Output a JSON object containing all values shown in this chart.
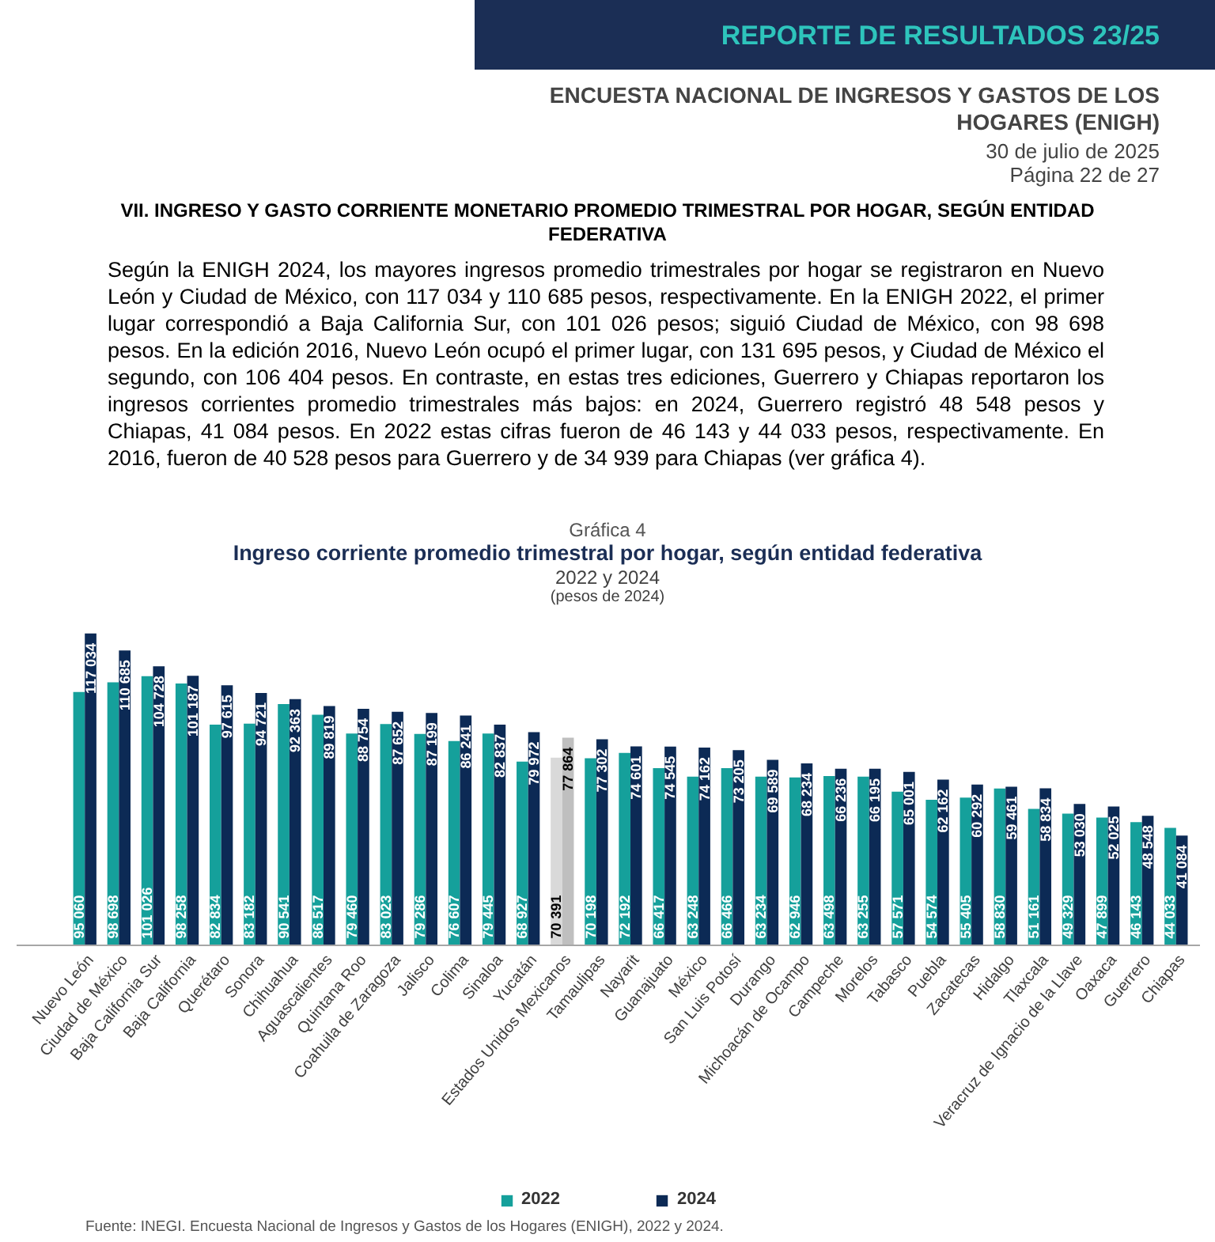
{
  "chart_data": {
    "type": "bar",
    "title": "Ingreso corriente promedio trimestral por hogar, según entidad federativa",
    "subtitle": "2022 y 2024",
    "annotations": [
      "REPORTE DE RESULTADOS 23/25",
      "ENCUESTA NACIONAL DE INGRESOS Y GASTOS DE LOS HOGARES (ENIGH)",
      "30 de julio de 2025",
      "Página 22 de 27",
      "VII. INGRESO Y GASTO CORRIENTE MONETARIO PROMEDIO TRIMESTRAL POR HOGAR, SEGÚN ENTIDAD FEDERATIVA",
      "Según la ENIGH 2024, los mayores ingresos promedio trimestrales por hogar se registraron en Nuevo León y Ciudad de México, con 117 034 y 110 685 pesos, respectivamente. En la ENIGH 2022, el primer lugar correspondió a Baja California Sur, con 101 026 pesos; siguió Ciudad de México, con 98 698 pesos. En la edición 2016, Nuevo León ocupó el primer lugar, con 131 695 pesos, y Ciudad de México el segundo, con 106 404 pesos. En contraste, en estas tres ediciones, Guerrero y Chiapas reportaron los ingresos corrientes promedio trimestrales más bajos: en 2024, Guerrero registró 48 548 pesos y Chiapas, 41 084 pesos. En 2022 estas cifras fueron de 46 143 y 44 033 pesos, respectivamente. En 2016, fueron de 40 528 pesos para Guerrero y de 34 939 para Chiapas (ver gráfica 4).",
      "Gráfica 4",
      "(pesos de 2024)",
      "Fuente: INEGI. Encuesta Nacional de Ingresos y Gastos de los Hogares (ENIGH), 2022 y 2024."
    ],
    "categories": [
      "Nuevo León",
      "Ciudad de México",
      "Baja California Sur",
      "Baja California",
      "Querétaro",
      "Sonora",
      "Chihuahua",
      "Aguascalientes",
      "Quintana Roo",
      "Coahuila de Zaragoza",
      "Jalisco",
      "Colima",
      "Sinaloa",
      "Yucatán",
      "Estados Unidos Mexicanos",
      "Tamaulipas",
      "Nayarit",
      "Guanajuato",
      "México",
      "San Luis Potosí",
      "Durango",
      "Michoacán de Ocampo",
      "Campeche",
      "Morelos",
      "Tabasco",
      "Puebla",
      "Zacatecas",
      "Hidalgo",
      "Tlaxcala",
      "Veracruz de Ignacio de la Llave",
      "Oaxaca",
      "Guerrero",
      "Chiapas"
    ],
    "series": [
      {
        "name": "2022",
        "color": "#15a09b",
        "colors": [
          "#15a09b",
          "#15a09b",
          "#15a09b",
          "#15a09b",
          "#15a09b",
          "#15a09b",
          "#15a09b",
          "#15a09b",
          "#15a09b",
          "#15a09b",
          "#15a09b",
          "#15a09b",
          "#15a09b",
          "#15a09b",
          "#d9d9d9",
          "#15a09b",
          "#15a09b",
          "#15a09b",
          "#15a09b",
          "#15a09b",
          "#15a09b",
          "#15a09b",
          "#15a09b",
          "#15a09b",
          "#15a09b",
          "#15a09b",
          "#15a09b",
          "#15a09b",
          "#15a09b",
          "#15a09b",
          "#15a09b",
          "#15a09b",
          "#15a09b"
        ],
        "values": [
          95060,
          98698,
          101026,
          98258,
          82834,
          83182,
          90541,
          86517,
          79460,
          83023,
          79286,
          76607,
          79445,
          68927,
          70391,
          70198,
          72192,
          66417,
          63248,
          66466,
          63234,
          62946,
          63498,
          63255,
          57571,
          54574,
          55405,
          58830,
          51161,
          49329,
          47899,
          46143,
          44033
        ]
      },
      {
        "name": "2024",
        "color": "#0c2a55",
        "colors": [
          "#0c2a55",
          "#0c2a55",
          "#0c2a55",
          "#0c2a55",
          "#0c2a55",
          "#0c2a55",
          "#0c2a55",
          "#0c2a55",
          "#0c2a55",
          "#0c2a55",
          "#0c2a55",
          "#0c2a55",
          "#0c2a55",
          "#0c2a55",
          "#bfbfbf",
          "#0c2a55",
          "#0c2a55",
          "#0c2a55",
          "#0c2a55",
          "#0c2a55",
          "#0c2a55",
          "#0c2a55",
          "#0c2a55",
          "#0c2a55",
          "#0c2a55",
          "#0c2a55",
          "#0c2a55",
          "#0c2a55",
          "#0c2a55",
          "#0c2a55",
          "#0c2a55",
          "#0c2a55",
          "#0c2a55"
        ],
        "values": [
          117034,
          110685,
          104728,
          101187,
          97615,
          94721,
          92363,
          89819,
          88754,
          87652,
          87199,
          86241,
          82837,
          79972,
          77864,
          77302,
          74601,
          74545,
          74162,
          73205,
          69589,
          68234,
          66236,
          66195,
          65001,
          62162,
          60292,
          59461,
          58834,
          53030,
          52025,
          48548,
          41084
        ]
      }
    ],
    "data_labels": true,
    "legend": "bottom"
  }
}
